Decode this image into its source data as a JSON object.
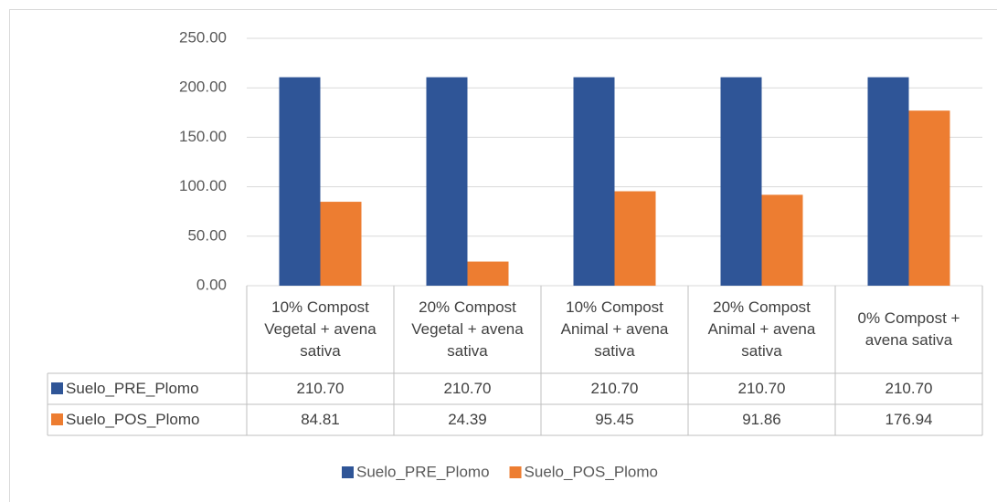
{
  "chart_data": {
    "type": "bar",
    "categories": [
      "10% Compost Vegetal + avena sativa",
      "20% Compost Vegetal + avena sativa",
      "10% Compost Animal + avena sativa",
      "20% Compost Animal + avena sativa",
      "0% Compost + avena sativa"
    ],
    "series": [
      {
        "name": "Suelo_PRE_Plomo",
        "color": "#2f5597",
        "values": [
          210.7,
          210.7,
          210.7,
          210.7,
          210.7
        ],
        "value_labels": [
          "210.70",
          "210.70",
          "210.70",
          "210.70",
          "210.70"
        ]
      },
      {
        "name": "Suelo_POS_Plomo",
        "color": "#ed7d31",
        "values": [
          84.81,
          24.39,
          95.45,
          91.86,
          176.94
        ],
        "value_labels": [
          "84.81",
          "24.39",
          "95.45",
          "91.86",
          "176.94"
        ]
      }
    ],
    "ylim": [
      0,
      250
    ],
    "yticks": [
      {
        "value": 0,
        "label": "0.00"
      },
      {
        "value": 50,
        "label": "50.00"
      },
      {
        "value": 100,
        "label": "100.00"
      },
      {
        "value": 150,
        "label": "150.00"
      },
      {
        "value": 200,
        "label": "200.00"
      },
      {
        "value": 250,
        "label": "250.00"
      }
    ],
    "grid": true,
    "legend": "bottom"
  }
}
